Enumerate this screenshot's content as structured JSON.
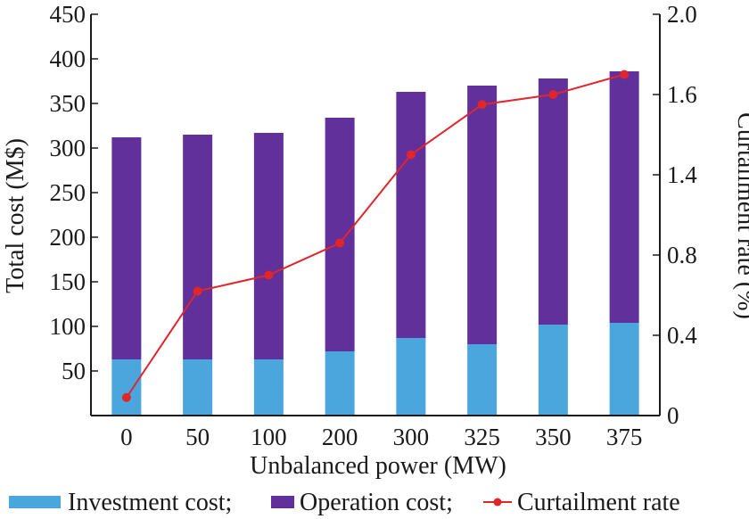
{
  "chart_data": {
    "type": "bar",
    "stacked": true,
    "categories": [
      "0",
      "50",
      "100",
      "200",
      "300",
      "325",
      "350",
      "375"
    ],
    "series": [
      {
        "name": "Investment cost;",
        "values": [
          63,
          63,
          63,
          72,
          87,
          80,
          102,
          104
        ],
        "axis": "left",
        "color": "#4aa6dc"
      },
      {
        "name": "Operation cost;",
        "values": [
          249,
          252,
          254,
          262,
          276,
          290,
          276,
          282
        ],
        "axis": "left",
        "color": "#61309a"
      },
      {
        "name": "Curtailment rate",
        "values": [
          0.09,
          0.62,
          0.7,
          0.86,
          1.3,
          1.55,
          1.6,
          1.7
        ],
        "axis": "right",
        "type": "line",
        "color": "#e0252b"
      }
    ],
    "xlabel": "Unbalanced power (MW)",
    "ylabel": "Total cost (M$)",
    "y2label": "Curtailment rate (%)",
    "ylim": [
      0,
      450
    ],
    "y2lim": [
      0,
      2.0
    ],
    "yticks": [
      "50",
      "100",
      "150",
      "200",
      "250",
      "300",
      "350",
      "400",
      "450"
    ],
    "y2ticks": [
      "0",
      "0.4",
      "0.8",
      "1.4",
      "1.6",
      "2.0"
    ],
    "grid": false,
    "legend_position": "bottom"
  }
}
